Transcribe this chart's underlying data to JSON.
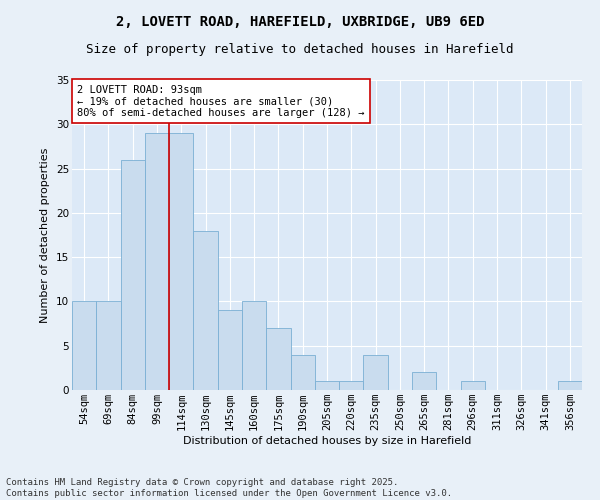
{
  "title1": "2, LOVETT ROAD, HAREFIELD, UXBRIDGE, UB9 6ED",
  "title2": "Size of property relative to detached houses in Harefield",
  "xlabel": "Distribution of detached houses by size in Harefield",
  "ylabel": "Number of detached properties",
  "categories": [
    "54sqm",
    "69sqm",
    "84sqm",
    "99sqm",
    "114sqm",
    "130sqm",
    "145sqm",
    "160sqm",
    "175sqm",
    "190sqm",
    "205sqm",
    "220sqm",
    "235sqm",
    "250sqm",
    "265sqm",
    "281sqm",
    "296sqm",
    "311sqm",
    "326sqm",
    "341sqm",
    "356sqm"
  ],
  "values": [
    10,
    10,
    26,
    29,
    29,
    18,
    9,
    10,
    7,
    4,
    1,
    1,
    4,
    0,
    2,
    0,
    1,
    0,
    0,
    0,
    1
  ],
  "bar_color": "#c9dcee",
  "bar_edge_color": "#7aafd4",
  "background_color": "#dce9f7",
  "fig_background_color": "#e8f0f8",
  "grid_color": "#ffffff",
  "vline_x": 3.5,
  "vline_color": "#cc0000",
  "annotation_text": "2 LOVETT ROAD: 93sqm\n← 19% of detached houses are smaller (30)\n80% of semi-detached houses are larger (128) →",
  "annotation_box_color": "#ffffff",
  "annotation_box_edge": "#cc0000",
  "ylim": [
    0,
    35
  ],
  "yticks": [
    0,
    5,
    10,
    15,
    20,
    25,
    30,
    35
  ],
  "footnote": "Contains HM Land Registry data © Crown copyright and database right 2025.\nContains public sector information licensed under the Open Government Licence v3.0.",
  "title_fontsize": 10,
  "subtitle_fontsize": 9,
  "axis_label_fontsize": 8,
  "tick_fontsize": 7.5,
  "annotation_fontsize": 7.5,
  "footnote_fontsize": 6.5
}
